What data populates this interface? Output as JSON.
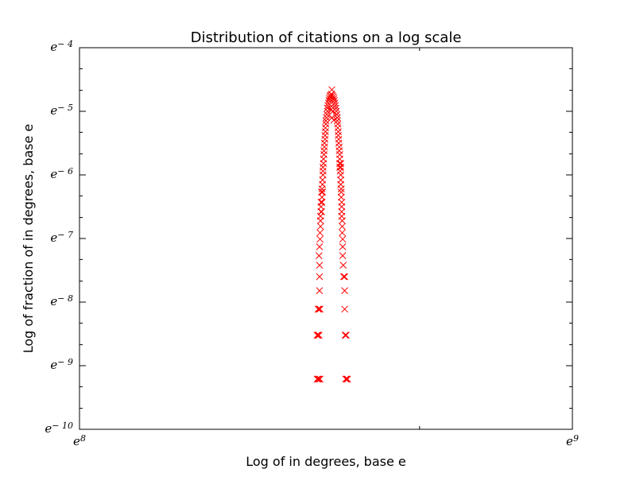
{
  "chart_data": {
    "type": "scatter",
    "title": "Distribution of citations on a log scale",
    "xlabel": "Log of in degrees, base e",
    "ylabel": "Log of fraction of in degrees, base e",
    "xlim": [
      8,
      9
    ],
    "ylim": [
      -10,
      -4
    ],
    "xscale": "log (natural), ticks shown as powers of e",
    "yscale": "log (natural), ticks shown as powers of e",
    "x_ticks": [
      {
        "base": "e",
        "exp": "8",
        "value": 8
      },
      {
        "base": "e",
        "exp": "9",
        "value": 9
      }
    ],
    "y_ticks": [
      {
        "base": "e",
        "exp": "− 4",
        "value": -4
      },
      {
        "base": "e",
        "exp": "− 5",
        "value": -5
      },
      {
        "base": "e",
        "exp": "− 6",
        "value": -6
      },
      {
        "base": "e",
        "exp": "− 7",
        "value": -7
      },
      {
        "base": "e",
        "exp": "− 8",
        "value": -8
      },
      {
        "base": "e",
        "exp": "− 9",
        "value": -9
      },
      {
        "base": "e",
        "exp": "− 10",
        "value": -10
      }
    ],
    "marker": "x",
    "color": "#ff0000",
    "grid": false,
    "legend": "none",
    "series": [
      {
        "points": [
          {
            "x": 8.482,
            "y": -9.21
          },
          {
            "x": 8.484,
            "y": -9.21
          },
          {
            "x": 8.486,
            "y": -9.21
          },
          {
            "x": 8.488,
            "y": -9.21
          },
          {
            "x": 8.54,
            "y": -9.21
          },
          {
            "x": 8.542,
            "y": -9.21
          },
          {
            "x": 8.544,
            "y": -9.21
          },
          {
            "x": 8.482,
            "y": -8.52
          },
          {
            "x": 8.484,
            "y": -8.52
          },
          {
            "x": 8.486,
            "y": -8.52
          },
          {
            "x": 8.539,
            "y": -8.52
          },
          {
            "x": 8.541,
            "y": -8.52
          },
          {
            "x": 8.484,
            "y": -8.11
          },
          {
            "x": 8.486,
            "y": -8.11
          },
          {
            "x": 8.488,
            "y": -8.11
          },
          {
            "x": 8.538,
            "y": -8.11
          },
          {
            "x": 8.487,
            "y": -7.82
          },
          {
            "x": 8.538,
            "y": -7.82
          },
          {
            "x": 8.487,
            "y": -7.6
          },
          {
            "x": 8.536,
            "y": -7.6
          },
          {
            "x": 8.538,
            "y": -7.6
          },
          {
            "x": 8.487,
            "y": -7.42
          },
          {
            "x": 8.535,
            "y": -7.42
          },
          {
            "x": 8.486,
            "y": -7.27
          },
          {
            "x": 8.534,
            "y": -7.27
          },
          {
            "x": 8.487,
            "y": -7.13
          },
          {
            "x": 8.534,
            "y": -7.13
          },
          {
            "x": 8.488,
            "y": -7.01
          },
          {
            "x": 8.534,
            "y": -7.01
          },
          {
            "x": 8.488,
            "y": -6.91
          },
          {
            "x": 8.533,
            "y": -6.91
          },
          {
            "x": 8.489,
            "y": -6.81
          },
          {
            "x": 8.533,
            "y": -6.81
          },
          {
            "x": 8.489,
            "y": -6.72
          },
          {
            "x": 8.533,
            "y": -6.72
          },
          {
            "x": 8.489,
            "y": -6.65
          },
          {
            "x": 8.532,
            "y": -6.65
          },
          {
            "x": 8.49,
            "y": -6.58
          },
          {
            "x": 8.491,
            "y": -6.58
          },
          {
            "x": 8.532,
            "y": -6.58
          },
          {
            "x": 8.49,
            "y": -6.5
          },
          {
            "x": 8.532,
            "y": -6.5
          },
          {
            "x": 8.49,
            "y": -6.43
          },
          {
            "x": 8.492,
            "y": -6.43
          },
          {
            "x": 8.532,
            "y": -6.43
          },
          {
            "x": 8.492,
            "y": -6.35
          },
          {
            "x": 8.531,
            "y": -6.35
          },
          {
            "x": 8.491,
            "y": -6.27
          },
          {
            "x": 8.493,
            "y": -6.27
          },
          {
            "x": 8.531,
            "y": -6.27
          },
          {
            "x": 8.492,
            "y": -6.22
          },
          {
            "x": 8.531,
            "y": -6.22
          },
          {
            "x": 8.493,
            "y": -6.15
          },
          {
            "x": 8.53,
            "y": -6.15
          },
          {
            "x": 8.493,
            "y": -6.08
          },
          {
            "x": 8.53,
            "y": -6.08
          },
          {
            "x": 8.494,
            "y": -6.0
          },
          {
            "x": 8.53,
            "y": -6.0
          },
          {
            "x": 8.494,
            "y": -5.94
          },
          {
            "x": 8.529,
            "y": -5.94
          },
          {
            "x": 8.494,
            "y": -5.88
          },
          {
            "x": 8.528,
            "y": -5.88
          },
          {
            "x": 8.53,
            "y": -5.88
          },
          {
            "x": 8.495,
            "y": -5.82
          },
          {
            "x": 8.528,
            "y": -5.82
          },
          {
            "x": 8.53,
            "y": -5.82
          },
          {
            "x": 8.495,
            "y": -5.75
          },
          {
            "x": 8.528,
            "y": -5.75
          },
          {
            "x": 8.496,
            "y": -5.68
          },
          {
            "x": 8.528,
            "y": -5.68
          },
          {
            "x": 8.496,
            "y": -5.62
          },
          {
            "x": 8.527,
            "y": -5.62
          },
          {
            "x": 8.497,
            "y": -5.56
          },
          {
            "x": 8.527,
            "y": -5.56
          },
          {
            "x": 8.497,
            "y": -5.5
          },
          {
            "x": 8.526,
            "y": -5.5
          },
          {
            "x": 8.498,
            "y": -5.44
          },
          {
            "x": 8.526,
            "y": -5.44
          },
          {
            "x": 8.498,
            "y": -5.38
          },
          {
            "x": 8.525,
            "y": -5.38
          },
          {
            "x": 8.499,
            "y": -5.32
          },
          {
            "x": 8.525,
            "y": -5.32
          },
          {
            "x": 8.499,
            "y": -5.26
          },
          {
            "x": 8.524,
            "y": -5.26
          },
          {
            "x": 8.5,
            "y": -5.2
          },
          {
            "x": 8.524,
            "y": -5.2
          },
          {
            "x": 8.5,
            "y": -5.15
          },
          {
            "x": 8.523,
            "y": -5.15
          },
          {
            "x": 8.501,
            "y": -5.1
          },
          {
            "x": 8.523,
            "y": -5.1
          },
          {
            "x": 8.502,
            "y": -5.05
          },
          {
            "x": 8.522,
            "y": -5.05
          },
          {
            "x": 8.503,
            "y": -5.0
          },
          {
            "x": 8.521,
            "y": -5.0
          },
          {
            "x": 8.503,
            "y": -4.95
          },
          {
            "x": 8.52,
            "y": -4.95
          },
          {
            "x": 8.504,
            "y": -4.91
          },
          {
            "x": 8.519,
            "y": -4.91
          },
          {
            "x": 8.505,
            "y": -4.87
          },
          {
            "x": 8.518,
            "y": -4.87
          },
          {
            "x": 8.506,
            "y": -4.83
          },
          {
            "x": 8.517,
            "y": -4.83
          },
          {
            "x": 8.507,
            "y": -4.8
          },
          {
            "x": 8.516,
            "y": -4.8
          },
          {
            "x": 8.508,
            "y": -4.77
          },
          {
            "x": 8.515,
            "y": -4.77
          },
          {
            "x": 8.509,
            "y": -4.75
          },
          {
            "x": 8.513,
            "y": -4.75
          },
          {
            "x": 8.511,
            "y": -4.73
          },
          {
            "x": 8.512,
            "y": -4.66
          },
          {
            "x": 8.51,
            "y": -4.98
          },
          {
            "x": 8.514,
            "y": -5.0
          },
          {
            "x": 8.512,
            "y": -5.1
          },
          {
            "x": 8.516,
            "y": -5.14
          },
          {
            "x": 8.511,
            "y": -4.92
          }
        ]
      }
    ]
  }
}
